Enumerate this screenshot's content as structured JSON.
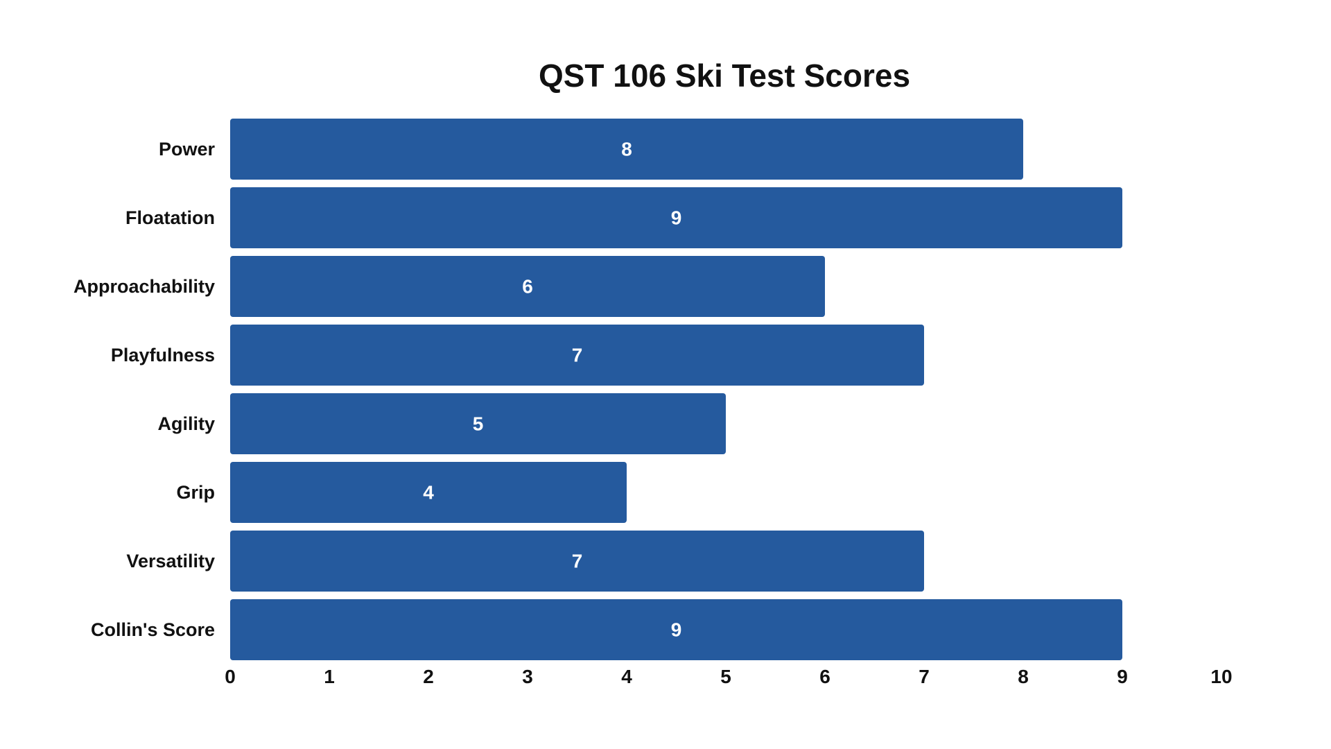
{
  "chart_data": {
    "type": "bar",
    "orientation": "horizontal",
    "title": "QST 106 Ski Test Scores",
    "categories": [
      "Power",
      "Floatation",
      "Approachability",
      "Playfulness",
      "Agility",
      "Grip",
      "Versatility",
      "Collin's Score"
    ],
    "values": [
      8,
      9,
      6,
      7,
      5,
      4,
      7,
      9
    ],
    "xlim": [
      0,
      10
    ],
    "xticks": [
      "0",
      "1",
      "2",
      "3",
      "4",
      "5",
      "6",
      "7",
      "8",
      "9",
      "10"
    ],
    "xlabel": "",
    "ylabel": "",
    "grid": false,
    "legend": "none",
    "data_labels": true,
    "bar_color": "#255A9E",
    "label_color": "#FFFFFF",
    "text_color": "#111111"
  }
}
